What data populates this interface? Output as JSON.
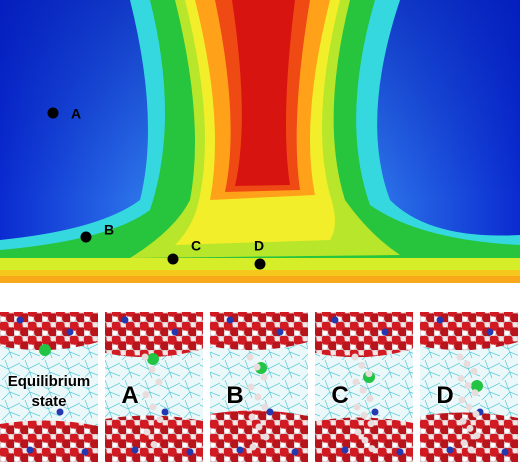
{
  "map": {
    "points": [
      {
        "label": "A"
      },
      {
        "label": "B"
      },
      {
        "label": "C"
      },
      {
        "label": "D"
      }
    ]
  },
  "panels": [
    {
      "label": "Equilibrium state"
    },
    {
      "label": "A"
    },
    {
      "label": "B"
    },
    {
      "label": "C"
    },
    {
      "label": "D"
    }
  ]
}
